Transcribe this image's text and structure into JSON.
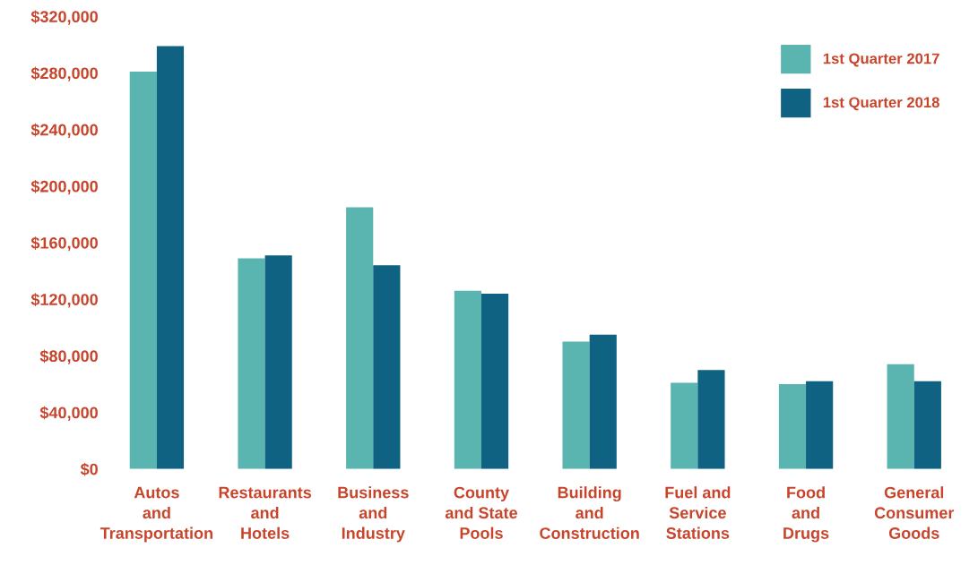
{
  "chart_data": {
    "type": "bar",
    "categories": [
      "Autos\nand\nTransportation",
      "Restaurants\nand\nHotels",
      "Business\nand\nIndustry",
      "County\nand State\nPools",
      "Building\nand\nConstruction",
      "Fuel and\nService\nStations",
      "Food\nand\nDrugs",
      "General\nConsumer\nGoods"
    ],
    "series": [
      {
        "name": "1st Quarter 2017",
        "color": "#5ab5b0",
        "values": [
          281000,
          149000,
          185000,
          126000,
          90000,
          61000,
          60000,
          74000
        ]
      },
      {
        "name": "1st Quarter 2018",
        "color": "#0f6282",
        "values": [
          299000,
          151000,
          144000,
          124000,
          95000,
          70000,
          62000,
          62000
        ]
      }
    ],
    "ylim": [
      0,
      320000
    ],
    "yticks": [
      {
        "value": 0,
        "label": "$0"
      },
      {
        "value": 40000,
        "label": "$40,000"
      },
      {
        "value": 80000,
        "label": "$80,000"
      },
      {
        "value": 120000,
        "label": "$120,000"
      },
      {
        "value": 160000,
        "label": "$160,000"
      },
      {
        "value": 200000,
        "label": "$200,000"
      },
      {
        "value": 240000,
        "label": "$240,000"
      },
      {
        "value": 280000,
        "label": "$280,000"
      },
      {
        "value": 320000,
        "label": "$320,000"
      }
    ],
    "legend": "top right",
    "grid": false
  }
}
